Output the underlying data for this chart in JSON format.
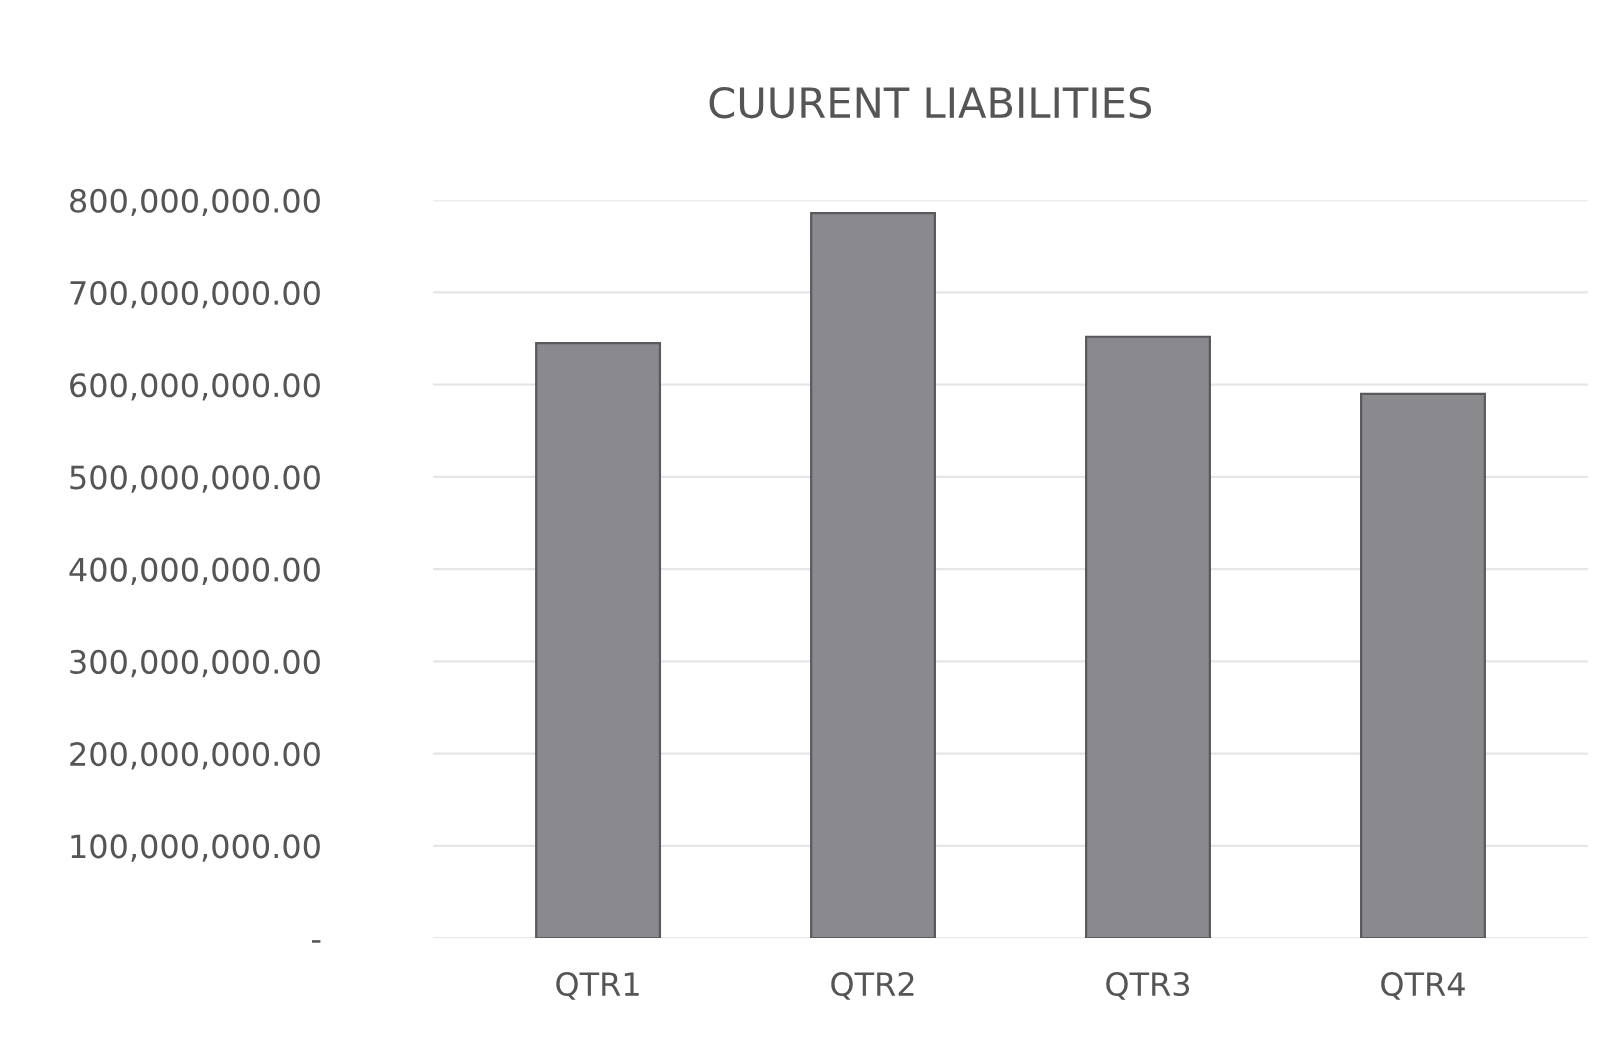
{
  "chart_data": {
    "type": "bar",
    "title": "CUURENT LIABILITIES",
    "categories": [
      "QTR1",
      "QTR2",
      "QTR3",
      "QTR4"
    ],
    "values": [
      645000000,
      786000000,
      652000000,
      590000000
    ],
    "color": "#8a8a8e",
    "ylim": [
      0,
      800000000
    ],
    "yticks": [
      {
        "value": 0,
        "label": "-"
      },
      {
        "value": 100000000,
        "label": "100,000,000.00"
      },
      {
        "value": 200000000,
        "label": "200,000,000.00"
      },
      {
        "value": 300000000,
        "label": "300,000,000.00"
      },
      {
        "value": 400000000,
        "label": "400,000,000.00"
      },
      {
        "value": 500000000,
        "label": "500,000,000.00"
      },
      {
        "value": 600000000,
        "label": "600,000,000.00"
      },
      {
        "value": 700000000,
        "label": "700,000,000.00"
      },
      {
        "value": 800000000,
        "label": "800,000,000.00"
      }
    ],
    "grid": "y"
  }
}
